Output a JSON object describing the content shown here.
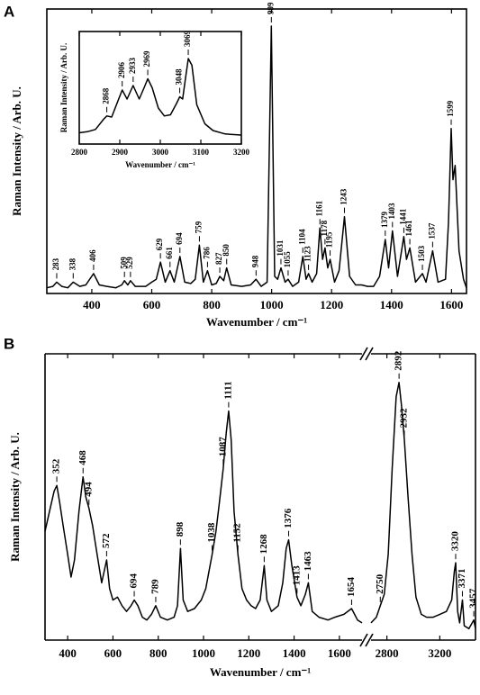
{
  "chart_data": [
    {
      "type": "line",
      "panel_label": "A",
      "xlabel": "Wavenumber / cm⁻¹",
      "ylabel": "Raman Intensity / Arb. U.",
      "color": "#000000",
      "xlim": [
        250,
        1650
      ],
      "xticks": [
        400,
        600,
        800,
        1000,
        1200,
        1400,
        1600
      ],
      "ylim": [
        0,
        100
      ],
      "x": [
        250,
        270,
        283,
        300,
        320,
        338,
        360,
        380,
        406,
        425,
        450,
        480,
        500,
        509,
        520,
        529,
        545,
        580,
        600,
        615,
        629,
        645,
        661,
        675,
        694,
        710,
        730,
        745,
        759,
        772,
        786,
        800,
        815,
        827,
        840,
        850,
        865,
        900,
        930,
        948,
        965,
        985,
        999,
        1010,
        1020,
        1031,
        1045,
        1055,
        1070,
        1090,
        1104,
        1115,
        1123,
        1135,
        1150,
        1161,
        1170,
        1178,
        1187,
        1195,
        1210,
        1225,
        1243,
        1260,
        1280,
        1300,
        1320,
        1340,
        1360,
        1379,
        1390,
        1403,
        1420,
        1441,
        1450,
        1461,
        1480,
        1503,
        1515,
        1537,
        1555,
        1580,
        1590,
        1599,
        1605,
        1612,
        1625,
        1640,
        1650
      ],
      "values": [
        2,
        2.5,
        4,
        2.5,
        2,
        4,
        2.5,
        3,
        7,
        3,
        2.5,
        2,
        3,
        4.5,
        3,
        4.5,
        2.5,
        2.5,
        4,
        5,
        11,
        4,
        8,
        4,
        13,
        4,
        3.5,
        5,
        17,
        4,
        8,
        3,
        3.5,
        6,
        4.5,
        9,
        3,
        2.5,
        3,
        5,
        2.5,
        4,
        94,
        6,
        5,
        9,
        4,
        5,
        2.5,
        4,
        13,
        5,
        7,
        4,
        7,
        23,
        12,
        16,
        9,
        12,
        4,
        8,
        27,
        6,
        3,
        3,
        2.5,
        2.5,
        6,
        19,
        9,
        22,
        6,
        20,
        12,
        16,
        4,
        7,
        4,
        15,
        4,
        5,
        25,
        58,
        40,
        45,
        15,
        5,
        2
      ],
      "peak_labels": [
        283,
        338,
        406,
        509,
        529,
        629,
        661,
        694,
        759,
        786,
        827,
        850,
        948,
        999,
        1031,
        1055,
        1104,
        1123,
        1161,
        1178,
        1195,
        1243,
        1379,
        1403,
        1441,
        1461,
        1503,
        1537,
        1599
      ]
    },
    {
      "type": "line",
      "xlabel": "Wavenumber / cm⁻¹",
      "ylabel": "Raman Intensity / Arb. U.",
      "color": "#000000",
      "xlim": [
        2800,
        3200
      ],
      "xticks": [
        2800,
        2900,
        3000,
        3100,
        3200
      ],
      "ylim": [
        0,
        100
      ],
      "x": [
        2800,
        2820,
        2840,
        2860,
        2868,
        2880,
        2895,
        2906,
        2918,
        2933,
        2948,
        2960,
        2969,
        2980,
        2995,
        3010,
        3025,
        3040,
        3048,
        3055,
        3062,
        3069,
        3078,
        3090,
        3110,
        3130,
        3160,
        3200
      ],
      "values": [
        10,
        11,
        13,
        22,
        25,
        24,
        38,
        48,
        40,
        52,
        40,
        50,
        58,
        50,
        32,
        25,
        26,
        36,
        42,
        40,
        58,
        76,
        70,
        35,
        18,
        12,
        9,
        8
      ],
      "peak_labels": [
        2868,
        2906,
        2933,
        2969,
        3048,
        3069
      ]
    },
    {
      "type": "line",
      "panel_label": "B",
      "xlabel": "Wavenumber / cm⁻¹",
      "ylabel": "Raman Intensity / Arb. U.",
      "axis_break": true,
      "xlim": [
        [
          300,
          1700
        ],
        [
          2680,
          3470
        ]
      ],
      "xticks": [
        400,
        600,
        800,
        1000,
        1200,
        1400,
        1600,
        2800,
        3200
      ],
      "ylim": [
        0,
        100
      ],
      "series": [
        {
          "color": "#000000",
          "x": [
            300,
            320,
            340,
            352,
            365,
            380,
            400,
            415,
            430,
            450,
            468,
            480,
            494,
            510,
            530,
            550,
            572,
            585,
            600,
            620,
            640,
            660,
            680,
            694,
            710,
            730,
            750,
            770,
            789,
            810,
            840,
            870,
            885,
            898,
            910,
            930,
            960,
            990,
            1010,
            1038,
            1055,
            1070,
            1087,
            1100,
            1111,
            1122,
            1135,
            1152,
            1170,
            1190,
            1210,
            1230,
            1250,
            1268,
            1280,
            1300,
            1330,
            1350,
            1365,
            1376,
            1390,
            1413,
            1430,
            1450,
            1463,
            1480,
            1510,
            1550,
            1580,
            1620,
            1654,
            1680,
            1700
          ],
          "values": [
            38,
            45,
            52,
            54,
            48,
            40,
            30,
            22,
            28,
            45,
            57,
            50,
            46,
            40,
            30,
            20,
            28,
            18,
            14,
            15,
            12,
            10,
            12,
            14,
            12,
            8,
            7,
            9,
            12,
            8,
            7,
            8,
            12,
            32,
            14,
            10,
            11,
            14,
            18,
            30,
            38,
            48,
            60,
            72,
            80,
            70,
            45,
            30,
            18,
            14,
            12,
            11,
            14,
            26,
            14,
            10,
            12,
            20,
            32,
            35,
            26,
            15,
            12,
            16,
            20,
            10,
            8,
            7,
            8,
            9,
            11,
            7,
            6
          ]
        },
        {
          "color": "#000000",
          "x": [
            2680,
            2720,
            2750,
            2780,
            2810,
            2840,
            2870,
            2892,
            2910,
            2932,
            2960,
            2990,
            3020,
            3060,
            3100,
            3150,
            3200,
            3250,
            3290,
            3310,
            3320,
            3335,
            3350,
            3371,
            3385,
            3420,
            3457,
            3470
          ],
          "values": [
            6,
            8,
            12,
            16,
            30,
            60,
            85,
            90,
            82,
            70,
            50,
            30,
            15,
            9,
            8,
            8,
            9,
            10,
            14,
            24,
            27,
            10,
            6,
            14,
            5,
            4,
            7,
            4
          ]
        }
      ],
      "peak_labels": [
        352,
        468,
        494,
        572,
        694,
        789,
        898,
        1038,
        1087,
        1111,
        1152,
        1268,
        1376,
        1413,
        1463,
        1654,
        2750,
        2892,
        2932,
        3320,
        3371,
        3457
      ]
    }
  ]
}
